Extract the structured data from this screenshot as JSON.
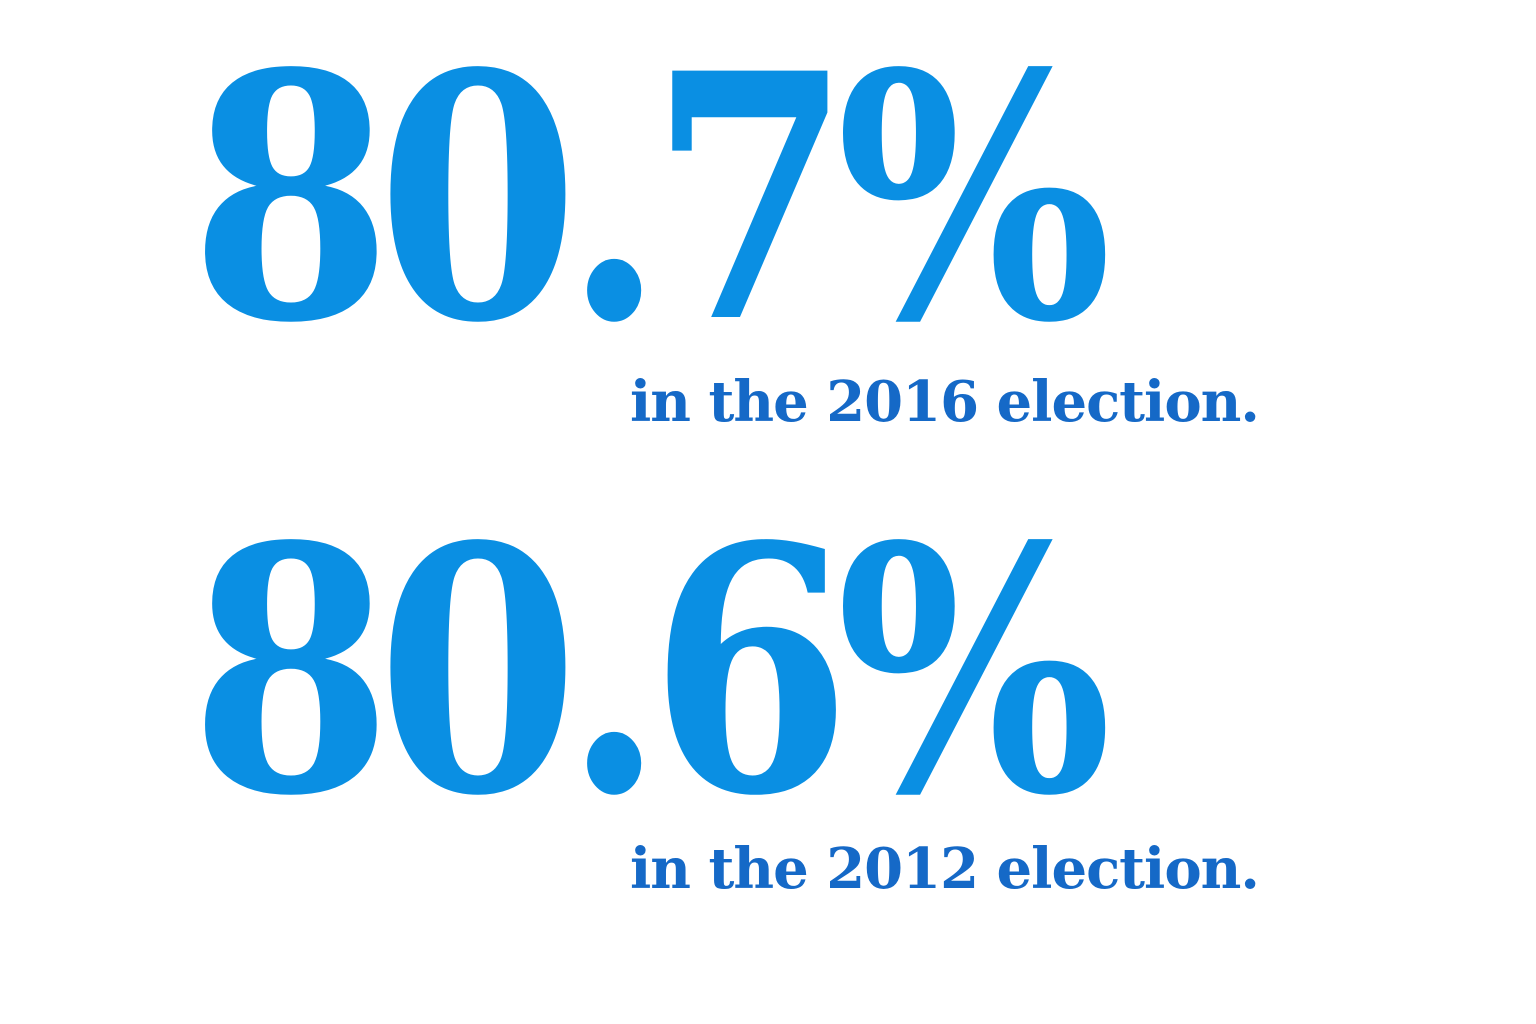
{
  "colors": {
    "number": "#0a8fe3",
    "caption": "#1569c7",
    "background": "#ffffff"
  },
  "stats": [
    {
      "value": "80.7%",
      "caption": "in the 2016 election."
    },
    {
      "value": "80.6%",
      "caption": "in the 2012 election."
    }
  ]
}
